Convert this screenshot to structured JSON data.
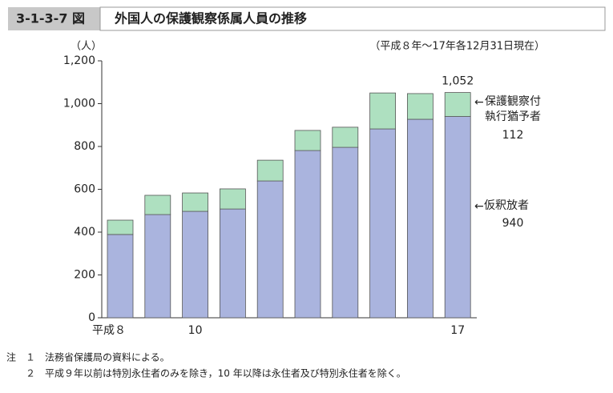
{
  "header": {
    "figure_no": "3-1-3-7 図",
    "title": "外国人の保護観察係属人員の推移"
  },
  "chart_data": {
    "type": "stacked-bar",
    "subtitle": "（平成８年～17年各12月31日現在）",
    "y_unit": "（人）",
    "categories": [
      "平成８",
      null,
      "10",
      null,
      null,
      null,
      null,
      null,
      null,
      "17"
    ],
    "series": [
      {
        "name": "仮釈放者",
        "color": "#aab4de",
        "values": [
          389,
          482,
          497,
          508,
          639,
          781,
          796,
          882,
          927,
          940
        ],
        "value_labels": [
          null,
          null,
          null,
          null,
          null,
          null,
          null,
          null,
          null,
          "940"
        ]
      },
      {
        "name": "保護観察付執行猶予者",
        "color": "#aee0c0",
        "values": [
          67,
          90,
          86,
          94,
          97,
          94,
          94,
          168,
          120,
          112
        ],
        "value_labels": [
          null,
          null,
          null,
          null,
          null,
          null,
          null,
          null,
          null,
          "112"
        ]
      }
    ],
    "annotations": [
      {
        "text": "1,052"
      }
    ],
    "ylim": [
      0,
      1200
    ],
    "yticks": [
      0,
      200,
      400,
      600,
      800,
      {
        "value": 1000,
        "label": "1,000"
      },
      {
        "value": 1200,
        "label": "1,200"
      }
    ]
  },
  "notes": [
    "注　１　法務省保護局の資料による。",
    "２　平成９年以前は特別永住者のみを除き，10 年以降は永住者及び特別永住者を除く。"
  ]
}
